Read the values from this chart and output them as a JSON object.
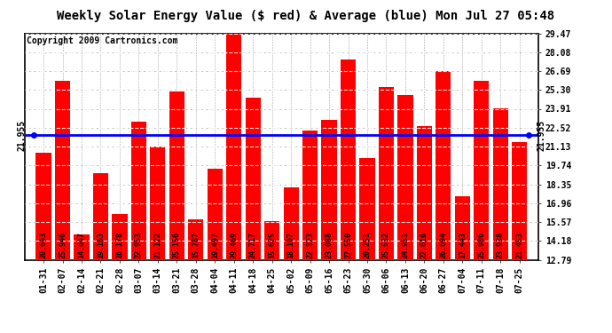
{
  "title": "Weekly Solar Energy Value ($ red) & Average (blue) Mon Jul 27 05:48",
  "copyright": "Copyright 2009 Cartronics.com",
  "average": 21.955,
  "bar_color": "#FF0000",
  "avg_line_color": "#0000FF",
  "fig_bg_color": "#FFFFFF",
  "plot_bg_color": "#FFFFFF",
  "categories": [
    "01-31",
    "02-07",
    "02-14",
    "02-21",
    "02-28",
    "03-07",
    "03-14",
    "03-21",
    "03-28",
    "04-04",
    "04-11",
    "04-18",
    "04-25",
    "05-02",
    "05-09",
    "05-16",
    "05-23",
    "05-30",
    "06-06",
    "06-13",
    "06-20",
    "06-27",
    "07-04",
    "07-11",
    "07-18",
    "07-25"
  ],
  "values": [
    20.643,
    25.946,
    14.647,
    19.163,
    16.178,
    22.953,
    21.122,
    25.156,
    15.787,
    19.497,
    29.469,
    24.717,
    15.625,
    18.107,
    22.323,
    23.088,
    27.55,
    20.251,
    25.532,
    24.951,
    22.616,
    26.694,
    17.443,
    25.986,
    23.938,
    21.453
  ],
  "ylim_min": 12.79,
  "ylim_max": 29.47,
  "yticks": [
    12.79,
    14.18,
    15.57,
    16.96,
    18.35,
    19.74,
    21.13,
    22.52,
    23.91,
    25.3,
    26.69,
    28.08,
    29.47
  ],
  "avg_label": "21.955",
  "grid_color": "#AAAAAA",
  "title_fontsize": 10,
  "tick_fontsize": 7,
  "bar_label_fontsize": 6,
  "copyright_fontsize": 7
}
